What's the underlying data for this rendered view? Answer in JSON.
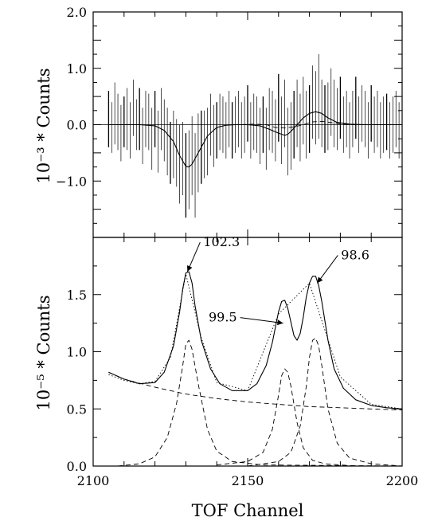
{
  "chart_data": [
    {
      "type": "line",
      "panel": "top",
      "ylabel": "10⁻³ * Counts",
      "xlim": [
        2100,
        2200
      ],
      "ylim": [
        -2.0,
        2.0
      ],
      "y_ticks": [
        "2.0",
        "1.0",
        "0.0",
        "−1.0"
      ],
      "y_tick_values": [
        2.0,
        1.0,
        0.0,
        -1.0
      ],
      "grid": false,
      "series": [
        {
          "style": "vertical bars",
          "x": [
            2105,
            2106,
            2107,
            2108,
            2109,
            2110,
            2111,
            2112,
            2113,
            2114,
            2115,
            2116,
            2117,
            2118,
            2119,
            2120,
            2121,
            2122,
            2123,
            2124,
            2125,
            2126,
            2127,
            2128,
            2129,
            2130,
            2131,
            2132,
            2133,
            2134,
            2135,
            2136,
            2137,
            2138,
            2139,
            2140,
            2141,
            2142,
            2143,
            2144,
            2145,
            2146,
            2147,
            2148,
            2149,
            2150,
            2151,
            2152,
            2153,
            2154,
            2155,
            2156,
            2157,
            2158,
            2159,
            2160,
            2161,
            2162,
            2163,
            2164,
            2165,
            2166,
            2167,
            2168,
            2169,
            2170,
            2171,
            2172,
            2173,
            2174,
            2175,
            2176,
            2177,
            2178,
            2179,
            2180,
            2181,
            2182,
            2183,
            2184,
            2185,
            2186,
            2187,
            2188,
            2189,
            2190,
            2191,
            2192,
            2193,
            2194,
            2195,
            2196,
            2197,
            2198,
            2199
          ],
          "y": [
            0.1,
            -0.05,
            0.2,
            0.05,
            -0.15,
            0.05,
            0.1,
            -0.1,
            0.3,
            0.0,
            0.1,
            -0.2,
            0.1,
            0.05,
            -0.25,
            0.1,
            -0.3,
            0.1,
            -0.1,
            -0.3,
            -0.5,
            -0.35,
            -0.5,
            -0.7,
            -0.6,
            -0.9,
            -0.8,
            -0.55,
            -0.9,
            -0.5,
            -0.4,
            -0.35,
            -0.3,
            0.0,
            -0.2,
            -0.1,
            0.05,
            0.0,
            -0.1,
            0.1,
            -0.1,
            0.0,
            0.1,
            -0.1,
            0.0,
            0.2,
            -0.1,
            0.05,
            0.0,
            -0.2,
            0.0,
            -0.25,
            0.1,
            0.05,
            -0.1,
            0.3,
            -0.1,
            0.2,
            -0.3,
            -0.2,
            0.0,
            0.2,
            -0.05,
            0.25,
            0.0,
            0.1,
            0.4,
            0.3,
            0.5,
            0.2,
            0.1,
            0.15,
            0.4,
            0.2,
            0.1,
            0.3,
            0.0,
            0.1,
            -0.1,
            0.1,
            0.3,
            0.0,
            0.2,
            0.1,
            -0.1,
            0.2,
            0.0,
            0.1,
            -0.1,
            0.0,
            0.05,
            -0.1,
            0.0,
            0.1,
            -0.1
          ],
          "err": [
            0.5,
            0.45,
            0.55,
            0.5,
            0.5,
            0.45,
            0.55,
            0.5,
            0.5,
            0.45,
            0.55,
            0.5,
            0.5,
            0.5,
            0.55,
            0.5,
            0.55,
            0.55,
            0.55,
            0.6,
            0.55,
            0.6,
            0.6,
            0.7,
            0.65,
            0.75,
            0.7,
            0.7,
            0.75,
            0.7,
            0.65,
            0.6,
            0.6,
            0.55,
            0.55,
            0.5,
            0.5,
            0.5,
            0.5,
            0.5,
            0.5,
            0.5,
            0.5,
            0.5,
            0.5,
            0.5,
            0.5,
            0.5,
            0.5,
            0.5,
            0.5,
            0.55,
            0.55,
            0.55,
            0.55,
            0.6,
            0.6,
            0.6,
            0.6,
            0.6,
            0.6,
            0.6,
            0.6,
            0.6,
            0.6,
            0.6,
            0.65,
            0.65,
            0.75,
            0.6,
            0.6,
            0.6,
            0.6,
            0.6,
            0.55,
            0.55,
            0.5,
            0.5,
            0.5,
            0.5,
            0.55,
            0.5,
            0.5,
            0.5,
            0.5,
            0.5,
            0.5,
            0.5,
            0.5,
            0.5,
            0.5,
            0.5,
            0.5,
            0.5,
            0.5
          ]
        },
        {
          "style": "solid",
          "x": [
            2105,
            2110,
            2115,
            2120,
            2123,
            2126,
            2128,
            2130,
            2131,
            2132,
            2134,
            2137,
            2140,
            2143,
            2146,
            2150,
            2154,
            2157,
            2160,
            2162,
            2163,
            2164,
            2166,
            2168,
            2170,
            2172,
            2174,
            2176,
            2179,
            2183,
            2188,
            2195,
            2200
          ],
          "y": [
            0.0,
            0.0,
            0.0,
            -0.02,
            -0.1,
            -0.3,
            -0.55,
            -0.74,
            -0.75,
            -0.7,
            -0.5,
            -0.2,
            -0.05,
            -0.01,
            0.0,
            0.0,
            -0.02,
            -0.08,
            -0.15,
            -0.19,
            -0.17,
            -0.12,
            0.0,
            0.12,
            0.2,
            0.23,
            0.2,
            0.12,
            0.04,
            0.01,
            0.0,
            0.0,
            0.0
          ]
        },
        {
          "style": "dashed",
          "x": [
            2148,
            2152,
            2156,
            2159,
            2162,
            2165,
            2168,
            2171,
            2174,
            2178,
            2183,
            2190
          ],
          "y": [
            0.0,
            0.01,
            0.0,
            -0.05,
            -0.06,
            -0.04,
            0.0,
            0.05,
            0.06,
            0.03,
            0.0,
            0.0
          ]
        }
      ]
    },
    {
      "type": "line",
      "panel": "bottom",
      "ylabel": "10⁻⁵ * Counts",
      "xlabel": "TOF Channel",
      "xlim": [
        2100,
        2200
      ],
      "ylim": [
        0.0,
        2.0
      ],
      "x_ticks": [
        "2100",
        "2150",
        "2200"
      ],
      "x_tick_values": [
        2100,
        2150,
        2200
      ],
      "y_ticks": [
        "1.5",
        "1.0",
        "0.5",
        "0.0"
      ],
      "y_tick_values": [
        1.5,
        1.0,
        0.5,
        0.0
      ],
      "grid": false,
      "annotations": [
        {
          "text": "102.3",
          "x": 2130.5,
          "y": 1.7
        },
        {
          "text": "99.5",
          "x": 2161.5,
          "y": 1.25
        },
        {
          "text": "98.6",
          "x": 2172.5,
          "y": 1.6
        }
      ],
      "series": [
        {
          "style": "solid",
          "x": [
            2105,
            2110,
            2115,
            2120,
            2123,
            2126,
            2128,
            2129,
            2130,
            2131,
            2132,
            2133,
            2135,
            2138,
            2141,
            2145,
            2150,
            2153,
            2156,
            2158,
            2160,
            2161,
            2162,
            2163,
            2164,
            2165,
            2166,
            2167,
            2168,
            2169,
            2170,
            2171,
            2172,
            2173,
            2174,
            2176,
            2178,
            2181,
            2185,
            2190,
            2195,
            2200
          ],
          "y": [
            0.82,
            0.76,
            0.72,
            0.73,
            0.82,
            1.05,
            1.35,
            1.55,
            1.69,
            1.7,
            1.6,
            1.4,
            1.1,
            0.85,
            0.72,
            0.66,
            0.66,
            0.72,
            0.88,
            1.08,
            1.35,
            1.44,
            1.45,
            1.38,
            1.26,
            1.14,
            1.1,
            1.16,
            1.3,
            1.48,
            1.6,
            1.66,
            1.66,
            1.58,
            1.44,
            1.1,
            0.85,
            0.68,
            0.58,
            0.53,
            0.51,
            0.5
          ]
        },
        {
          "style": "dotted",
          "x": [
            2105,
            2110,
            2115,
            2120,
            2125,
            2130,
            2135,
            2140,
            2150,
            2160,
            2170,
            2180,
            2190,
            2200
          ],
          "y": [
            0.8,
            0.75,
            0.72,
            0.74,
            0.95,
            1.68,
            1.12,
            0.73,
            0.66,
            1.33,
            1.6,
            0.78,
            0.54,
            0.5
          ]
        },
        {
          "style": "dashed",
          "x": [
            2105,
            2110,
            2120,
            2130,
            2140,
            2150,
            2160,
            2170,
            2180,
            2190,
            2200
          ],
          "y": [
            0.82,
            0.76,
            0.69,
            0.63,
            0.59,
            0.56,
            0.54,
            0.52,
            0.51,
            0.5,
            0.49
          ]
        },
        {
          "style": "dashed",
          "x": [
            2108,
            2115,
            2120,
            2124,
            2127,
            2129,
            2130,
            2131,
            2132,
            2134,
            2137,
            2140,
            2145,
            2155,
            2200
          ],
          "y": [
            0.0,
            0.02,
            0.08,
            0.25,
            0.55,
            0.88,
            1.07,
            1.1,
            1.02,
            0.72,
            0.32,
            0.13,
            0.04,
            0.01,
            0.0
          ]
        },
        {
          "style": "dashed",
          "x": [
            2140,
            2150,
            2155,
            2158,
            2160,
            2161,
            2162,
            2163,
            2164,
            2166,
            2168,
            2171,
            2175,
            2185
          ],
          "y": [
            0.01,
            0.04,
            0.12,
            0.32,
            0.62,
            0.79,
            0.85,
            0.82,
            0.7,
            0.38,
            0.16,
            0.05,
            0.02,
            0.0
          ]
        },
        {
          "style": "dashed",
          "x": [
            2150,
            2160,
            2164,
            2167,
            2169,
            2170,
            2171,
            2172,
            2173,
            2174,
            2176,
            2179,
            2183,
            2190,
            2200
          ],
          "y": [
            0.0,
            0.04,
            0.12,
            0.35,
            0.7,
            0.95,
            1.1,
            1.12,
            1.05,
            0.88,
            0.5,
            0.2,
            0.07,
            0.02,
            0.0
          ]
        },
        {
          "style": "dashed",
          "x": [
            2105,
            2200
          ],
          "y": [
            0.0,
            0.0
          ]
        }
      ]
    }
  ]
}
